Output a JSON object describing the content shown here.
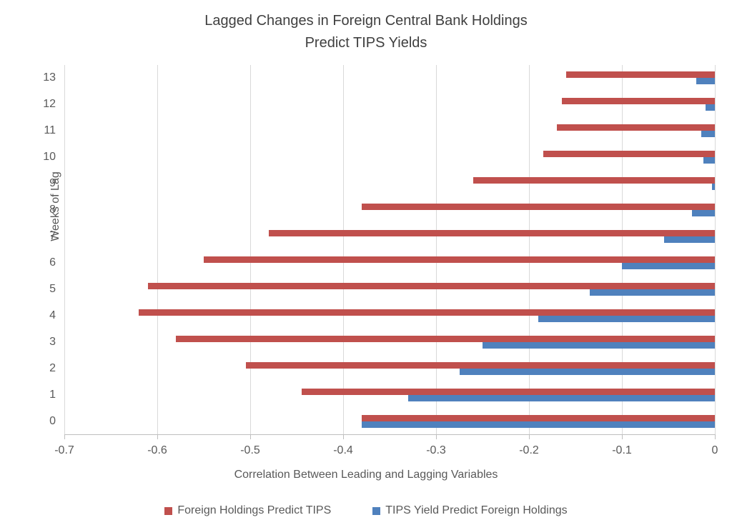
{
  "title": {
    "line1": "Lagged Changes in Foreign Central Bank Holdings",
    "line2": "Predict TIPS Yields"
  },
  "chart_data": {
    "type": "bar",
    "orientation": "horizontal",
    "title": "Lagged Changes in Foreign Central Bank Holdings Predict TIPS Yields",
    "xlabel": "Correlation Between Leading and Lagging Variables",
    "ylabel": "Weeks of Lag",
    "xlim": [
      -0.7,
      0
    ],
    "grid": true,
    "legend_position": "bottom",
    "xticks": [
      "-0.7",
      "-0.6",
      "-0.5",
      "-0.4",
      "-0.3",
      "-0.2",
      "-0.1",
      "0"
    ],
    "categories": [
      "13",
      "12",
      "11",
      "10",
      "9",
      "8",
      "7",
      "6",
      "5",
      "4",
      "3",
      "2",
      "1",
      "0"
    ],
    "series": [
      {
        "name": "Foreign Holdings Predict TIPS",
        "color": "#c0504d",
        "values": [
          -0.16,
          -0.165,
          -0.17,
          -0.185,
          -0.26,
          -0.38,
          -0.48,
          -0.55,
          -0.61,
          -0.62,
          -0.58,
          -0.505,
          -0.445,
          -0.38
        ]
      },
      {
        "name": "TIPS Yield Predict Foreign Holdings",
        "color": "#4f81bd",
        "values": [
          -0.02,
          -0.01,
          -0.015,
          -0.012,
          -0.003,
          -0.025,
          -0.055,
          -0.1,
          -0.135,
          -0.19,
          -0.25,
          -0.275,
          -0.33,
          -0.38
        ]
      }
    ]
  },
  "colors": {
    "gridline": "#d9d9d9",
    "axis": "#bfbfbf",
    "text": "#595959",
    "title_text": "#3f3f3f"
  }
}
